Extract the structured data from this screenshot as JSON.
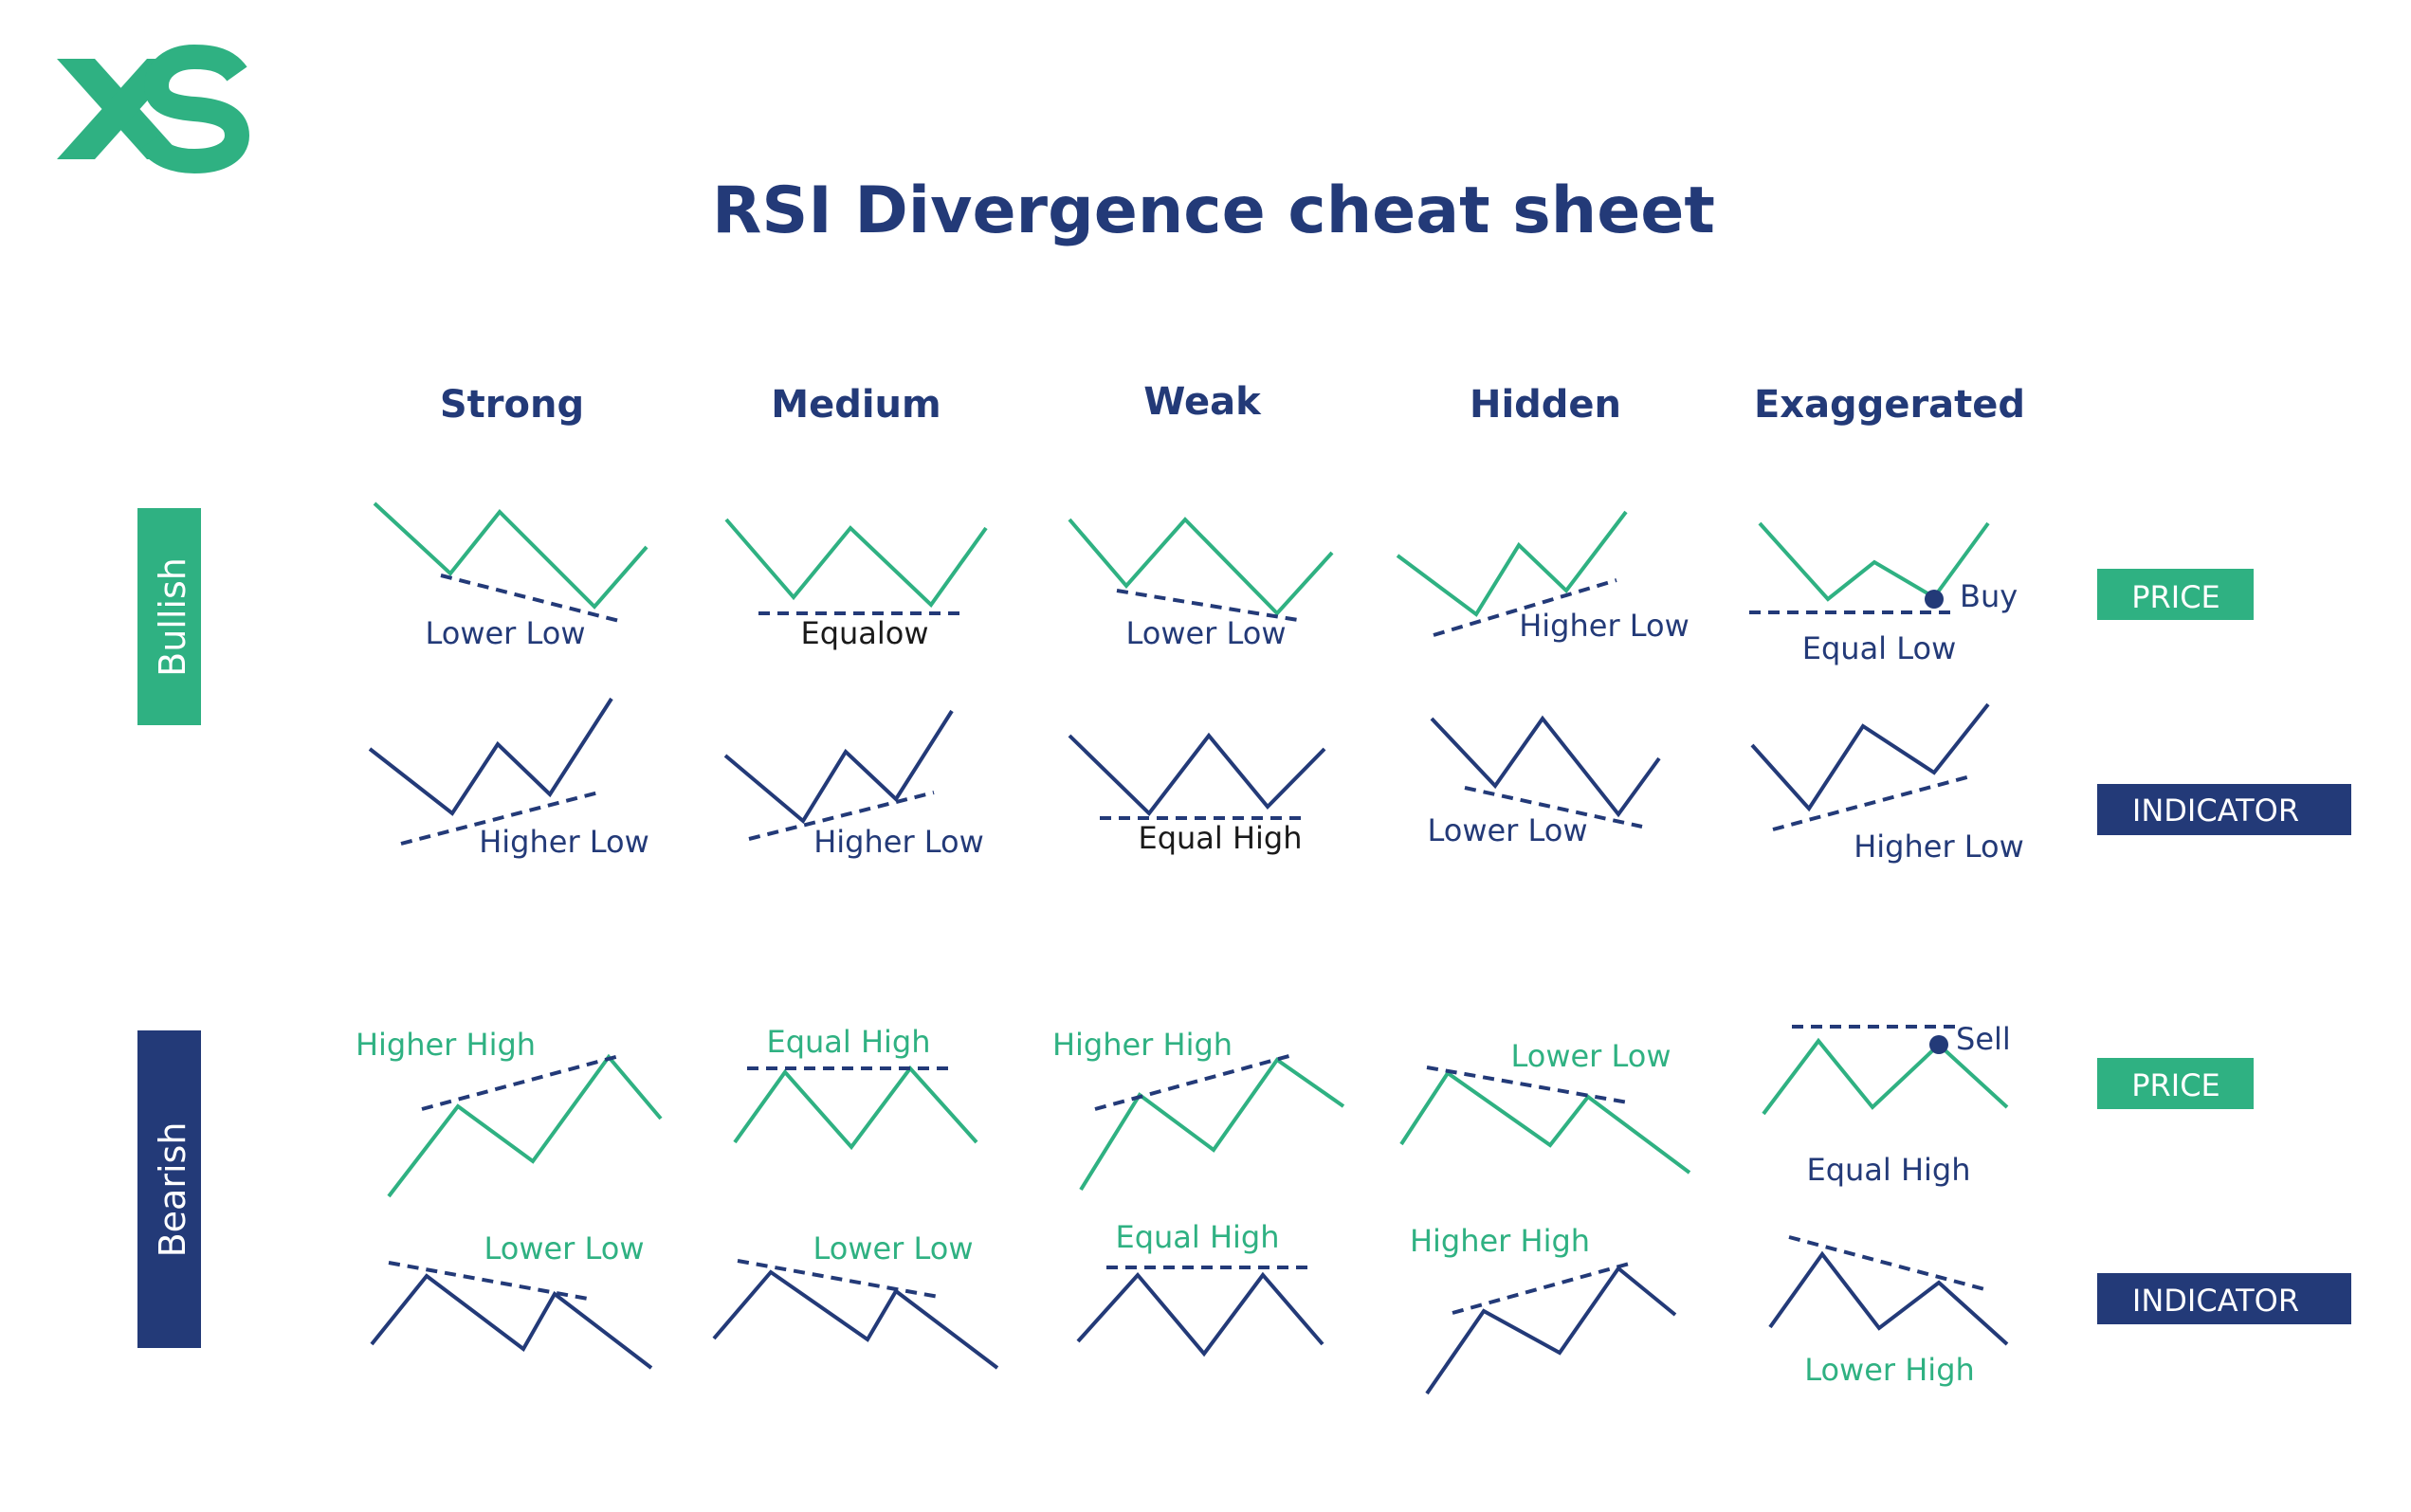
{
  "logo": {
    "text": "XS"
  },
  "title": "RSI Divergence cheat sheet",
  "columns": [
    "Strong",
    "Medium",
    "Weak",
    "Hidden",
    "Exaggerated"
  ],
  "rows": {
    "bullish": "Bullish",
    "bearish": "Bearish"
  },
  "legend": {
    "price": "PRICE",
    "indicator": "INDICATOR"
  },
  "colors": {
    "green": "#2fb182",
    "navy": "#233a78",
    "white": "#ffffff"
  },
  "labels": {
    "bull_price": [
      "Lower Low",
      "Equalow",
      "Lower Low",
      "Higher Low",
      "Equal Low"
    ],
    "bull_indicator": [
      "Higher Low",
      "Higher Low",
      "Equal High",
      "Lower Low",
      "Higher Low"
    ],
    "bear_price": [
      "Higher High",
      "Equal High",
      "Higher High",
      "Lower Low",
      "Equal High"
    ],
    "bear_indicator": [
      "Lower Low",
      "Lower Low",
      "Equal High",
      "Higher High",
      "Lower High"
    ],
    "buy": "Buy",
    "sell": "Sell"
  }
}
